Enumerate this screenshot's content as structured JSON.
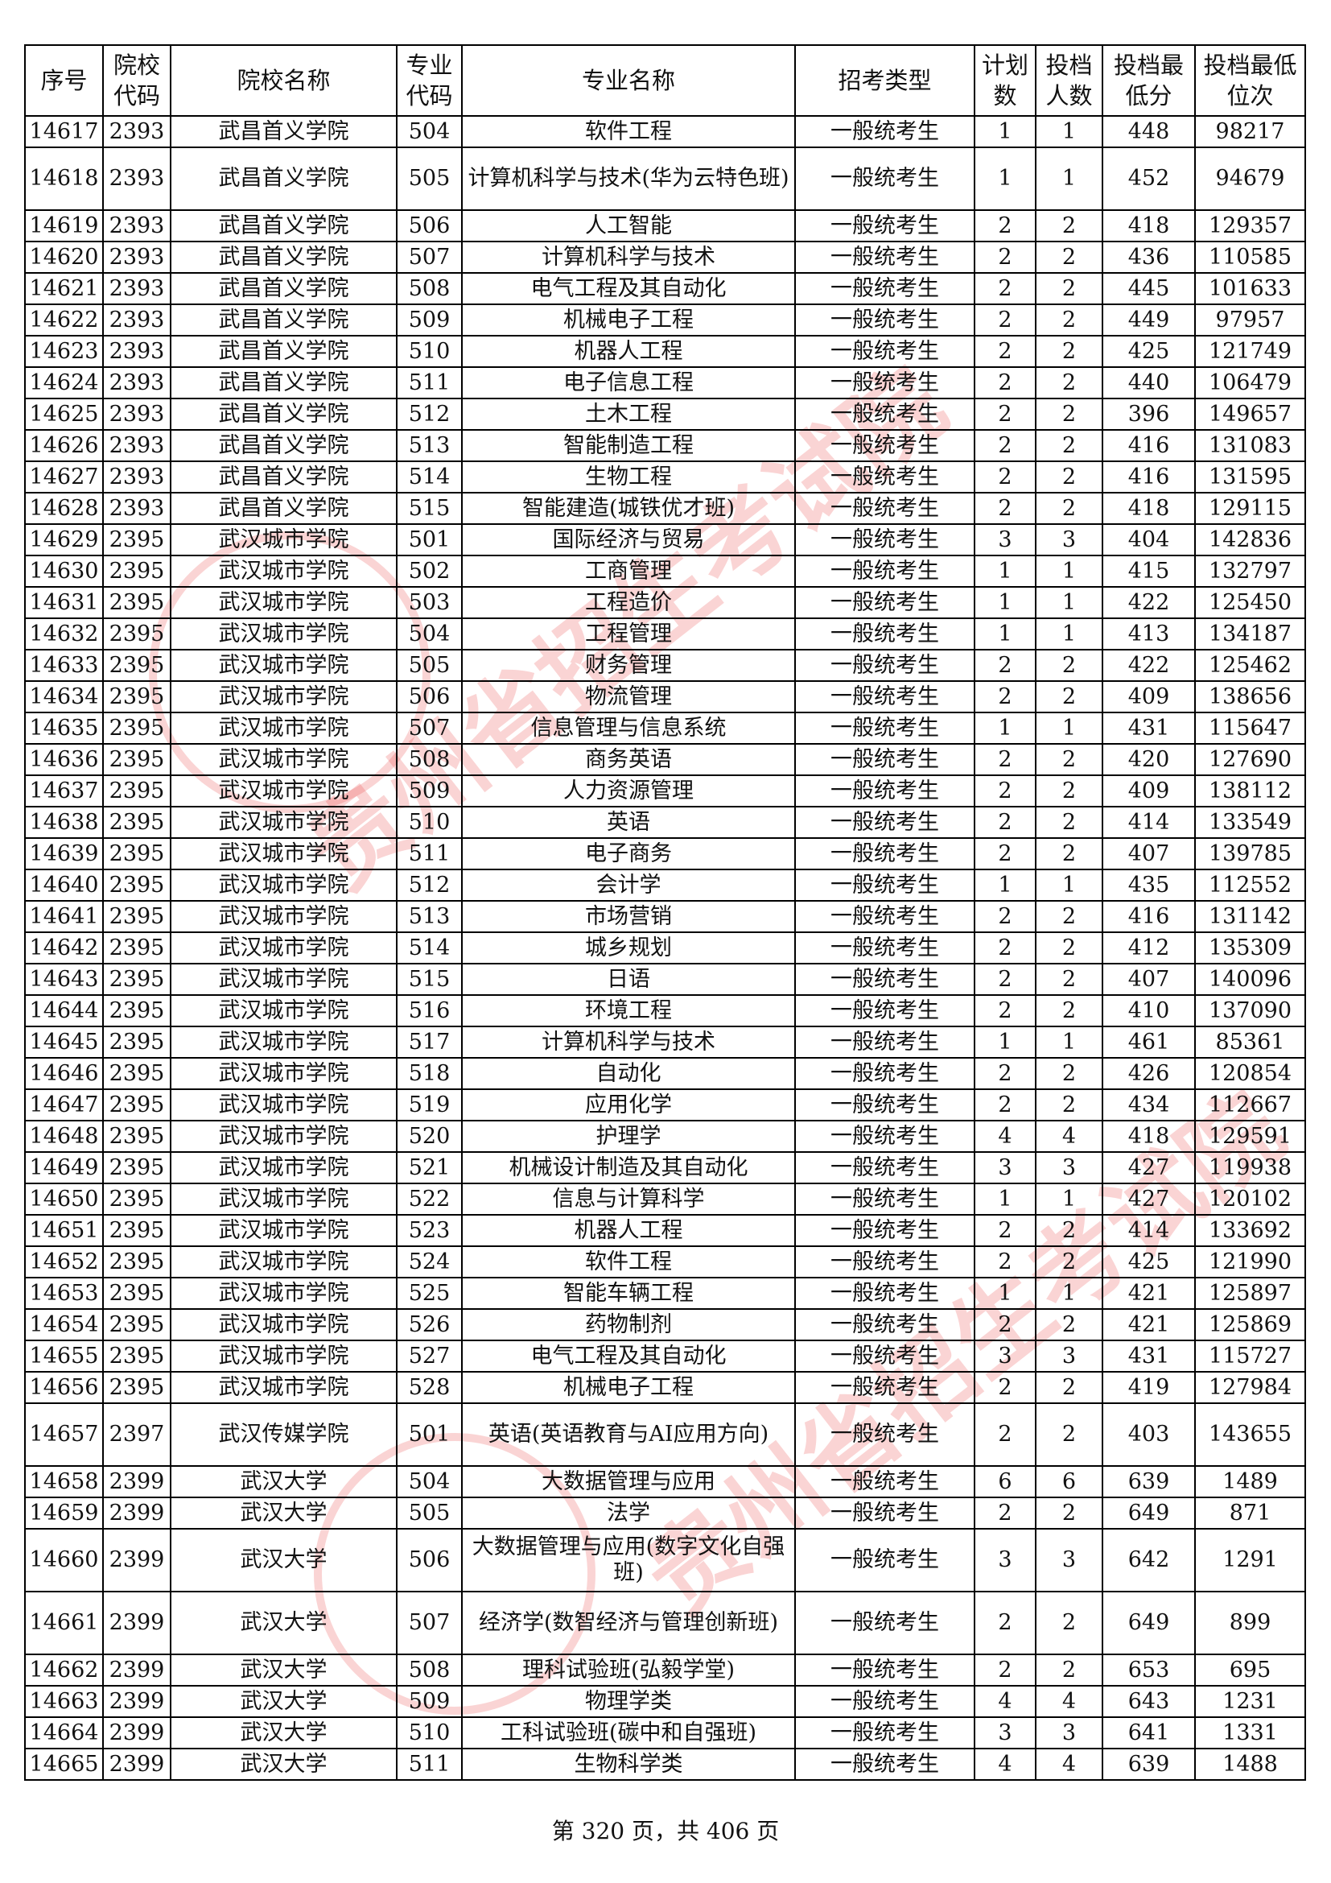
{
  "watermark": {
    "text": "贵州省招生考试院",
    "color": "#e63c3c"
  },
  "table": {
    "headers": [
      "序号",
      "院校代码",
      "院校名称",
      "专业代码",
      "专业名称",
      "招考类型",
      "计划数",
      "投档人数",
      "投档最低分",
      "投档最低位次"
    ],
    "rows": [
      [
        "14617",
        "2393",
        "武昌首义学院",
        "504",
        "软件工程",
        "一般统考生",
        "1",
        "1",
        "448",
        "98217"
      ],
      [
        "14618",
        "2393",
        "武昌首义学院",
        "505",
        "计算机科学与技术(华为云特色班)",
        "一般统考生",
        "1",
        "1",
        "452",
        "94679"
      ],
      [
        "14619",
        "2393",
        "武昌首义学院",
        "506",
        "人工智能",
        "一般统考生",
        "2",
        "2",
        "418",
        "129357"
      ],
      [
        "14620",
        "2393",
        "武昌首义学院",
        "507",
        "计算机科学与技术",
        "一般统考生",
        "2",
        "2",
        "436",
        "110585"
      ],
      [
        "14621",
        "2393",
        "武昌首义学院",
        "508",
        "电气工程及其自动化",
        "一般统考生",
        "2",
        "2",
        "445",
        "101633"
      ],
      [
        "14622",
        "2393",
        "武昌首义学院",
        "509",
        "机械电子工程",
        "一般统考生",
        "2",
        "2",
        "449",
        "97957"
      ],
      [
        "14623",
        "2393",
        "武昌首义学院",
        "510",
        "机器人工程",
        "一般统考生",
        "2",
        "2",
        "425",
        "121749"
      ],
      [
        "14624",
        "2393",
        "武昌首义学院",
        "511",
        "电子信息工程",
        "一般统考生",
        "2",
        "2",
        "440",
        "106479"
      ],
      [
        "14625",
        "2393",
        "武昌首义学院",
        "512",
        "土木工程",
        "一般统考生",
        "2",
        "2",
        "396",
        "149657"
      ],
      [
        "14626",
        "2393",
        "武昌首义学院",
        "513",
        "智能制造工程",
        "一般统考生",
        "2",
        "2",
        "416",
        "131083"
      ],
      [
        "14627",
        "2393",
        "武昌首义学院",
        "514",
        "生物工程",
        "一般统考生",
        "2",
        "2",
        "416",
        "131595"
      ],
      [
        "14628",
        "2393",
        "武昌首义学院",
        "515",
        "智能建造(城铁优才班)",
        "一般统考生",
        "2",
        "2",
        "418",
        "129115"
      ],
      [
        "14629",
        "2395",
        "武汉城市学院",
        "501",
        "国际经济与贸易",
        "一般统考生",
        "3",
        "3",
        "404",
        "142836"
      ],
      [
        "14630",
        "2395",
        "武汉城市学院",
        "502",
        "工商管理",
        "一般统考生",
        "1",
        "1",
        "415",
        "132797"
      ],
      [
        "14631",
        "2395",
        "武汉城市学院",
        "503",
        "工程造价",
        "一般统考生",
        "1",
        "1",
        "422",
        "125450"
      ],
      [
        "14632",
        "2395",
        "武汉城市学院",
        "504",
        "工程管理",
        "一般统考生",
        "1",
        "1",
        "413",
        "134187"
      ],
      [
        "14633",
        "2395",
        "武汉城市学院",
        "505",
        "财务管理",
        "一般统考生",
        "2",
        "2",
        "422",
        "125462"
      ],
      [
        "14634",
        "2395",
        "武汉城市学院",
        "506",
        "物流管理",
        "一般统考生",
        "2",
        "2",
        "409",
        "138656"
      ],
      [
        "14635",
        "2395",
        "武汉城市学院",
        "507",
        "信息管理与信息系统",
        "一般统考生",
        "1",
        "1",
        "431",
        "115647"
      ],
      [
        "14636",
        "2395",
        "武汉城市学院",
        "508",
        "商务英语",
        "一般统考生",
        "2",
        "2",
        "420",
        "127690"
      ],
      [
        "14637",
        "2395",
        "武汉城市学院",
        "509",
        "人力资源管理",
        "一般统考生",
        "2",
        "2",
        "409",
        "138112"
      ],
      [
        "14638",
        "2395",
        "武汉城市学院",
        "510",
        "英语",
        "一般统考生",
        "2",
        "2",
        "414",
        "133549"
      ],
      [
        "14639",
        "2395",
        "武汉城市学院",
        "511",
        "电子商务",
        "一般统考生",
        "2",
        "2",
        "407",
        "139785"
      ],
      [
        "14640",
        "2395",
        "武汉城市学院",
        "512",
        "会计学",
        "一般统考生",
        "1",
        "1",
        "435",
        "112552"
      ],
      [
        "14641",
        "2395",
        "武汉城市学院",
        "513",
        "市场营销",
        "一般统考生",
        "2",
        "2",
        "416",
        "131142"
      ],
      [
        "14642",
        "2395",
        "武汉城市学院",
        "514",
        "城乡规划",
        "一般统考生",
        "2",
        "2",
        "412",
        "135309"
      ],
      [
        "14643",
        "2395",
        "武汉城市学院",
        "515",
        "日语",
        "一般统考生",
        "2",
        "2",
        "407",
        "140096"
      ],
      [
        "14644",
        "2395",
        "武汉城市学院",
        "516",
        "环境工程",
        "一般统考生",
        "2",
        "2",
        "410",
        "137090"
      ],
      [
        "14645",
        "2395",
        "武汉城市学院",
        "517",
        "计算机科学与技术",
        "一般统考生",
        "1",
        "1",
        "461",
        "85361"
      ],
      [
        "14646",
        "2395",
        "武汉城市学院",
        "518",
        "自动化",
        "一般统考生",
        "2",
        "2",
        "426",
        "120854"
      ],
      [
        "14647",
        "2395",
        "武汉城市学院",
        "519",
        "应用化学",
        "一般统考生",
        "2",
        "2",
        "434",
        "112667"
      ],
      [
        "14648",
        "2395",
        "武汉城市学院",
        "520",
        "护理学",
        "一般统考生",
        "4",
        "4",
        "418",
        "129591"
      ],
      [
        "14649",
        "2395",
        "武汉城市学院",
        "521",
        "机械设计制造及其自动化",
        "一般统考生",
        "3",
        "3",
        "427",
        "119938"
      ],
      [
        "14650",
        "2395",
        "武汉城市学院",
        "522",
        "信息与计算科学",
        "一般统考生",
        "1",
        "1",
        "427",
        "120102"
      ],
      [
        "14651",
        "2395",
        "武汉城市学院",
        "523",
        "机器人工程",
        "一般统考生",
        "2",
        "2",
        "414",
        "133692"
      ],
      [
        "14652",
        "2395",
        "武汉城市学院",
        "524",
        "软件工程",
        "一般统考生",
        "2",
        "2",
        "425",
        "121990"
      ],
      [
        "14653",
        "2395",
        "武汉城市学院",
        "525",
        "智能车辆工程",
        "一般统考生",
        "1",
        "1",
        "421",
        "125897"
      ],
      [
        "14654",
        "2395",
        "武汉城市学院",
        "526",
        "药物制剂",
        "一般统考生",
        "2",
        "2",
        "421",
        "125869"
      ],
      [
        "14655",
        "2395",
        "武汉城市学院",
        "527",
        "电气工程及其自动化",
        "一般统考生",
        "3",
        "3",
        "431",
        "115727"
      ],
      [
        "14656",
        "2395",
        "武汉城市学院",
        "528",
        "机械电子工程",
        "一般统考生",
        "2",
        "2",
        "419",
        "127984"
      ],
      [
        "14657",
        "2397",
        "武汉传媒学院",
        "501",
        "英语(英语教育与AI应用方向)",
        "一般统考生",
        "2",
        "2",
        "403",
        "143655"
      ],
      [
        "14658",
        "2399",
        "武汉大学",
        "504",
        "大数据管理与应用",
        "一般统考生",
        "6",
        "6",
        "639",
        "1489"
      ],
      [
        "14659",
        "2399",
        "武汉大学",
        "505",
        "法学",
        "一般统考生",
        "2",
        "2",
        "649",
        "871"
      ],
      [
        "14660",
        "2399",
        "武汉大学",
        "506",
        "大数据管理与应用(数字文化自强班)",
        "一般统考生",
        "3",
        "3",
        "642",
        "1291"
      ],
      [
        "14661",
        "2399",
        "武汉大学",
        "507",
        "经济学(数智经济与管理创新班)",
        "一般统考生",
        "2",
        "2",
        "649",
        "899"
      ],
      [
        "14662",
        "2399",
        "武汉大学",
        "508",
        "理科试验班(弘毅学堂)",
        "一般统考生",
        "2",
        "2",
        "653",
        "695"
      ],
      [
        "14663",
        "2399",
        "武汉大学",
        "509",
        "物理学类",
        "一般统考生",
        "4",
        "4",
        "643",
        "1231"
      ],
      [
        "14664",
        "2399",
        "武汉大学",
        "510",
        "工科试验班(碳中和自强班)",
        "一般统考生",
        "3",
        "3",
        "641",
        "1331"
      ],
      [
        "14665",
        "2399",
        "武汉大学",
        "511",
        "生物科学类",
        "一般统考生",
        "4",
        "4",
        "639",
        "1488"
      ]
    ]
  },
  "footer": {
    "page_text": "第 320 页，共 406 页"
  }
}
